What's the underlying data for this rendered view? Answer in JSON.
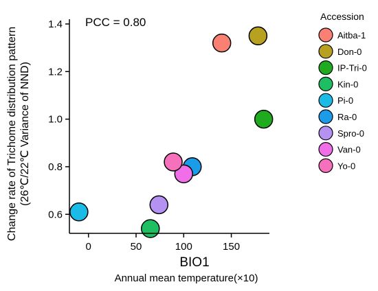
{
  "chart_data": {
    "type": "scatter",
    "annotation": "PCC = 0.80",
    "xlabel": "BIO1",
    "xlabel_sub": "Annual mean temperature(×10)",
    "ylabel_line1": "Change rate of Trichome distribution pattern",
    "ylabel_line2": "(26℃/22℃ Variance of NND)",
    "xlim": [
      -20,
      190
    ],
    "ylim": [
      0.52,
      1.42
    ],
    "xticks": [
      0,
      50,
      100,
      150
    ],
    "yticks": [
      0.6,
      0.8,
      1.0,
      1.2,
      1.4
    ],
    "xtick_labels": [
      "0",
      "50",
      "100",
      "150"
    ],
    "ytick_labels": [
      "0.6",
      "0.8",
      "1.0",
      "1.2",
      "1.4"
    ],
    "grid": false,
    "legend": {
      "title": "Accession",
      "placement": "right"
    },
    "series": [
      {
        "name": "Aitba-1",
        "color": "#f98072",
        "x": [
          140
        ],
        "y": [
          1.32
        ]
      },
      {
        "name": "Don-0",
        "color": "#b8a020",
        "x": [
          178
        ],
        "y": [
          1.35
        ]
      },
      {
        "name": "IP-Tri-0",
        "color": "#1faa1f",
        "x": [
          184
        ],
        "y": [
          1.0
        ]
      },
      {
        "name": "Kin-0",
        "color": "#1dbf62",
        "x": [
          65
        ],
        "y": [
          0.54
        ]
      },
      {
        "name": "Pi-0",
        "color": "#1bbbe8",
        "x": [
          -10
        ],
        "y": [
          0.61
        ]
      },
      {
        "name": "Ra-0",
        "color": "#1a9ce8",
        "x": [
          109
        ],
        "y": [
          0.8
        ]
      },
      {
        "name": "Spro-0",
        "color": "#b592f2",
        "x": [
          74
        ],
        "y": [
          0.64
        ]
      },
      {
        "name": "Van-0",
        "color": "#f06ee8",
        "x": [
          100
        ],
        "y": [
          0.77
        ]
      },
      {
        "name": "Yo-0",
        "color": "#f670bb",
        "x": [
          89
        ],
        "y": [
          0.82
        ]
      }
    ]
  }
}
